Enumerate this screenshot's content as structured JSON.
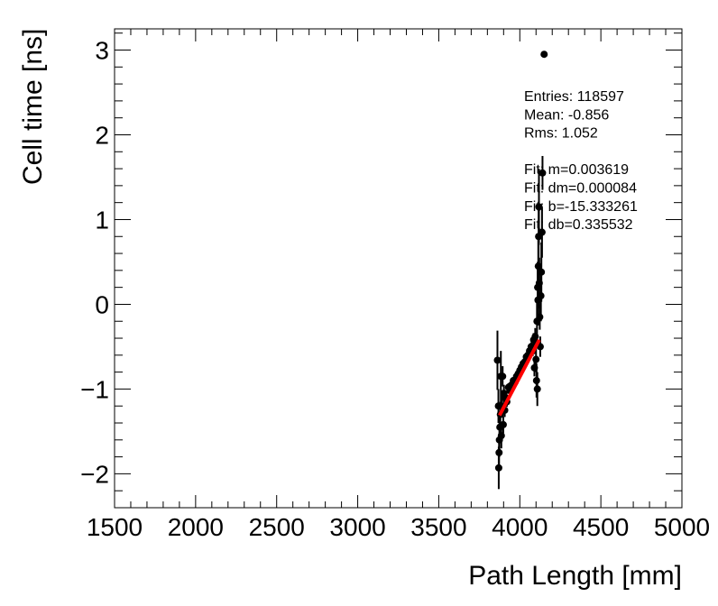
{
  "chart_data": {
    "type": "scatter",
    "xlabel": "Path Length [mm]",
    "ylabel": "Cell time [ns]",
    "xlim": [
      1500,
      5000
    ],
    "ylim": [
      -2.4,
      3.25
    ],
    "x_ticks": [
      1500,
      2000,
      2500,
      3000,
      3500,
      4000,
      4500,
      5000
    ],
    "y_ticks": [
      -2,
      -1,
      0,
      1,
      2,
      3
    ],
    "y_tick_labels": [
      "−2",
      "−1",
      "0",
      "1",
      "2",
      "3"
    ],
    "grid": false,
    "stats": [
      "Entries: 118597",
      "Mean: -0.856",
      "Rms: 1.052",
      "",
      "Fit: m=0.003619",
      "Fit: dm=0.000084",
      "Fit: b=-15.333261",
      "Fit: db=0.335532"
    ],
    "points": [
      {
        "x": 3862,
        "y": -0.66,
        "e": 0.35
      },
      {
        "x": 3868,
        "y": -1.2,
        "e": 0.2
      },
      {
        "x": 3870,
        "y": -1.93,
        "e": 0.25
      },
      {
        "x": 3872,
        "y": -1.75,
        "e": 0.2
      },
      {
        "x": 3874,
        "y": -1.6,
        "e": 0.2
      },
      {
        "x": 3877,
        "y": -1.45,
        "e": 0.15
      },
      {
        "x": 3880,
        "y": -1.3,
        "e": 0.15
      },
      {
        "x": 3883,
        "y": -0.85,
        "e": 0.3
      },
      {
        "x": 3886,
        "y": -1.55,
        "e": 0.15
      },
      {
        "x": 3890,
        "y": -1.2,
        "e": 0.12
      },
      {
        "x": 3894,
        "y": -0.85,
        "e": 0.12
      },
      {
        "x": 3898,
        "y": -1.42,
        "e": 0.1
      },
      {
        "x": 3902,
        "y": -1.05,
        "e": 0.1
      },
      {
        "x": 3907,
        "y": -1.25,
        "e": 0.08
      },
      {
        "x": 3912,
        "y": -1.1,
        "e": 0.08
      },
      {
        "x": 3920,
        "y": -1.15,
        "e": 0.06
      },
      {
        "x": 3930,
        "y": -0.98,
        "e": 0.05
      },
      {
        "x": 3940,
        "y": -1.02,
        "e": 0.05
      },
      {
        "x": 3950,
        "y": -0.95,
        "e": 0.04
      },
      {
        "x": 3960,
        "y": -0.9,
        "e": 0.04
      },
      {
        "x": 3970,
        "y": -0.92,
        "e": 0.04
      },
      {
        "x": 3980,
        "y": -0.85,
        "e": 0.03
      },
      {
        "x": 3990,
        "y": -0.82,
        "e": 0.03
      },
      {
        "x": 4000,
        "y": -0.78,
        "e": 0.03
      },
      {
        "x": 4010,
        "y": -0.74,
        "e": 0.03
      },
      {
        "x": 4020,
        "y": -0.7,
        "e": 0.03
      },
      {
        "x": 4030,
        "y": -0.68,
        "e": 0.03
      },
      {
        "x": 4040,
        "y": -0.62,
        "e": 0.04
      },
      {
        "x": 4050,
        "y": -0.6,
        "e": 0.04
      },
      {
        "x": 4060,
        "y": -0.55,
        "e": 0.05
      },
      {
        "x": 4070,
        "y": -0.5,
        "e": 0.05
      },
      {
        "x": 4080,
        "y": -0.55,
        "e": 0.06
      },
      {
        "x": 4085,
        "y": -0.42,
        "e": 0.08
      },
      {
        "x": 4090,
        "y": -0.75,
        "e": 0.1
      },
      {
        "x": 4095,
        "y": -0.38,
        "e": 0.1
      },
      {
        "x": 4100,
        "y": -0.65,
        "e": 0.15
      },
      {
        "x": 4103,
        "y": -0.9,
        "e": 0.2
      },
      {
        "x": 4106,
        "y": -0.2,
        "e": 0.25
      },
      {
        "x": 4108,
        "y": -1.0,
        "e": 0.2
      },
      {
        "x": 4110,
        "y": 0.2,
        "e": 0.3
      },
      {
        "x": 4112,
        "y": 0.05,
        "e": 0.3
      },
      {
        "x": 4114,
        "y": 0.45,
        "e": 0.35
      },
      {
        "x": 4116,
        "y": 0.8,
        "e": 0.4
      },
      {
        "x": 4118,
        "y": 1.15,
        "e": 0.45
      },
      {
        "x": 4120,
        "y": 0.25,
        "e": 0.3
      },
      {
        "x": 4123,
        "y": -0.15,
        "e": 0.15
      },
      {
        "x": 4126,
        "y": -0.5,
        "e": 0.12
      },
      {
        "x": 4130,
        "y": 0.1,
        "e": 0.3
      },
      {
        "x": 4133,
        "y": 0.38,
        "e": 0.35
      },
      {
        "x": 4137,
        "y": 0.85,
        "e": 0.3
      },
      {
        "x": 4140,
        "y": 1.55,
        "e": 0.2
      },
      {
        "x": 4150,
        "y": 2.95,
        "e": 0.0
      }
    ],
    "fit_line": {
      "x": [
        3875,
        4120
      ],
      "y": [
        -1.31,
        -0.42
      ],
      "color": "#ff0000"
    },
    "marker_color": "#000000"
  }
}
